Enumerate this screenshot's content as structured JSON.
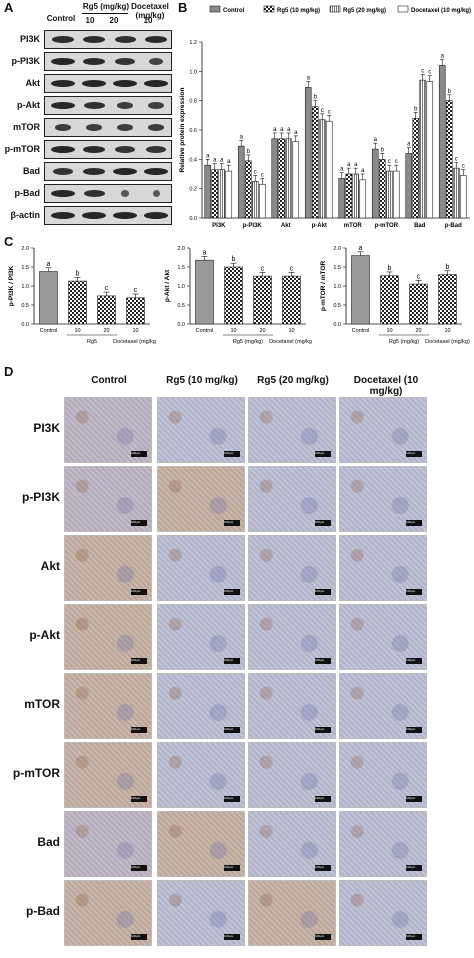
{
  "panels": {
    "A": "A",
    "B": "B",
    "C": "C",
    "D": "D"
  },
  "panelA": {
    "header": {
      "control": "Control",
      "rg5": "Rg5 (mg/kg)",
      "doc": "Docetaxel (mg/kg)",
      "d10": "10",
      "d20": "20",
      "d10b": "10"
    },
    "rows": [
      "PI3K",
      "p-PI3K",
      "Akt",
      "p-Akt",
      "mTOR",
      "p-mTOR",
      "Bad",
      "p-Bad",
      "β-actin"
    ]
  },
  "chart_data": [
    {
      "type": "bar",
      "ylabel": "Relative protein expression",
      "ylim": [
        0,
        1.2
      ],
      "yticks": [
        "0.0",
        "0.2",
        "0.4",
        "0.6",
        "0.8",
        "1.0",
        "1.2"
      ],
      "categories": [
        "PI3K",
        "p-PI3K",
        "Akt",
        "p-Akt",
        "mTOR",
        "p-mTOR",
        "Bad",
        "p-Bad"
      ],
      "series": [
        {
          "name": "Control",
          "values": [
            0.36,
            0.49,
            0.54,
            0.89,
            0.27,
            0.47,
            0.44,
            1.04
          ],
          "letters": [
            "a",
            "a",
            "a",
            "a",
            "a",
            "a",
            "a",
            "a"
          ]
        },
        {
          "name": "Rg5 (10 mg/kg)",
          "values": [
            0.33,
            0.39,
            0.54,
            0.76,
            0.3,
            0.4,
            0.68,
            0.8
          ],
          "letters": [
            "a",
            "b",
            "a",
            "b",
            "a",
            "b",
            "b",
            "b"
          ]
        },
        {
          "name": "Rg5 (20 mg/kg)",
          "values": [
            0.33,
            0.25,
            0.54,
            0.67,
            0.3,
            0.32,
            0.94,
            0.34
          ],
          "letters": [
            "a",
            "c",
            "a",
            "c",
            "a",
            "c",
            "c",
            "c"
          ]
        },
        {
          "name": "Docetaxel (10 mg/kg)",
          "values": [
            0.32,
            0.23,
            0.52,
            0.66,
            0.26,
            0.32,
            0.93,
            0.29
          ],
          "letters": [
            "a",
            "c",
            "a",
            "c",
            "a",
            "c",
            "c",
            "c"
          ]
        }
      ],
      "legend": "top"
    },
    {
      "type": "bar",
      "ylabel": "p-PI3K / PI3K",
      "ylim": [
        0,
        2.0
      ],
      "yticks": [
        "0.0",
        "0.5",
        "1.0",
        "1.5",
        "2.0"
      ],
      "categories": [
        "Control",
        "10",
        "20",
        "10"
      ],
      "values": [
        1.38,
        1.13,
        0.74,
        0.69
      ],
      "letters": [
        "a",
        "b",
        "c",
        "c"
      ],
      "group_labels": {
        "rg5": "Rg5",
        "doc": "Docetaxel (mg/kg)"
      }
    },
    {
      "type": "bar",
      "ylabel": "p-Akt / Akt",
      "ylim": [
        0,
        2.0
      ],
      "yticks": [
        "0.0",
        "0.5",
        "1.0",
        "1.5",
        "2.0"
      ],
      "categories": [
        "Control",
        "10",
        "20",
        "10"
      ],
      "values": [
        1.68,
        1.5,
        1.26,
        1.26
      ],
      "letters": [
        "a",
        "b",
        "c",
        "c"
      ],
      "group_labels": {
        "rg5": "Rg5 (mg/kg)",
        "doc": "Docetaxel (mg/kg)"
      }
    },
    {
      "type": "bar",
      "ylabel": "p-mTOR / mTOR",
      "ylim": [
        0,
        2.0
      ],
      "yticks": [
        "0.0",
        "0.5",
        "1.0",
        "1.5",
        "2.0"
      ],
      "categories": [
        "Control",
        "10",
        "20",
        "10"
      ],
      "values": [
        1.8,
        1.27,
        1.05,
        1.3
      ],
      "letters": [
        "a",
        "b",
        "c",
        "b"
      ],
      "group_labels": {
        "rg5": "Rg5 (mg/kg)",
        "doc": "Docetaxel (mg/kg)"
      }
    }
  ],
  "panelD": {
    "columns": [
      "Control",
      "Rg5 (10 mg/kg)",
      "Rg5 (20 mg/kg)",
      "Docetaxel (10 mg/kg)"
    ],
    "rows": [
      "PI3K",
      "p-PI3K",
      "Akt",
      "p-Akt",
      "mTOR",
      "p-mTOR",
      "Bad",
      "p-Bad"
    ],
    "scale_label": "100μm"
  }
}
